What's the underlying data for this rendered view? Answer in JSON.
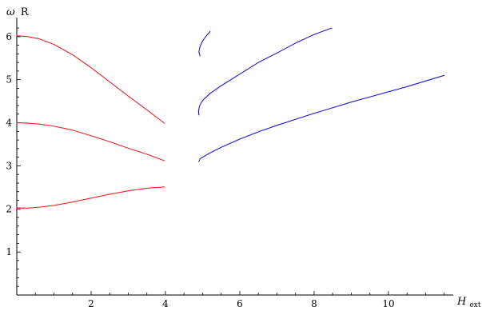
{
  "chart_data": {
    "type": "line",
    "title": "",
    "xlabel": "H",
    "xlabel_sub": "ext",
    "ylabel_symbol": "ω",
    "ylabel_suffix": "R",
    "xlim": [
      0,
      11.7
    ],
    "ylim": [
      0,
      6.35
    ],
    "xticks_major": [
      2,
      4,
      6,
      8,
      10
    ],
    "yticks_major": [
      1,
      2,
      3,
      4,
      5,
      6
    ],
    "grid": false,
    "legend": "none",
    "colors": {
      "red": "#e8262a",
      "blue": "#1a1ad6"
    },
    "series": [
      {
        "color": "red",
        "x": [
          0,
          0.3,
          0.6,
          1.0,
          1.5,
          2.0,
          2.5,
          3.0,
          3.5,
          3.97
        ],
        "y": [
          2.02,
          2.02,
          2.04,
          2.08,
          2.16,
          2.25,
          2.34,
          2.42,
          2.48,
          2.51
        ]
      },
      {
        "color": "red",
        "x": [
          0,
          0.3,
          0.6,
          1.0,
          1.5,
          2.0,
          2.5,
          3.0,
          3.5,
          3.97
        ],
        "y": [
          4.0,
          3.99,
          3.97,
          3.92,
          3.83,
          3.7,
          3.56,
          3.41,
          3.27,
          3.12
        ]
      },
      {
        "color": "red",
        "x": [
          0,
          0.3,
          0.6,
          1.0,
          1.5,
          2.0,
          2.5,
          3.0,
          3.5,
          3.97
        ],
        "y": [
          6.02,
          6.0,
          5.95,
          5.82,
          5.58,
          5.28,
          4.95,
          4.62,
          4.3,
          3.99
        ]
      },
      {
        "color": "blue",
        "x": [
          4.9,
          4.93,
          5.0,
          5.2,
          5.5,
          6.0,
          6.5,
          7.0,
          7.5,
          8.0,
          8.5,
          9.0,
          9.5,
          10.0,
          10.5,
          11.0,
          11.5
        ],
        "y": [
          3.1,
          3.16,
          3.2,
          3.3,
          3.43,
          3.62,
          3.79,
          3.94,
          4.08,
          4.22,
          4.35,
          4.48,
          4.6,
          4.72,
          4.84,
          4.97,
          5.1
        ]
      },
      {
        "color": "blue",
        "x": [
          4.9,
          4.89,
          4.92,
          5.0,
          5.2,
          5.5,
          6.0,
          6.5,
          7.0,
          7.5,
          8.0,
          8.47
        ],
        "y": [
          4.18,
          4.28,
          4.4,
          4.52,
          4.68,
          4.86,
          5.13,
          5.4,
          5.62,
          5.85,
          6.05,
          6.2
        ]
      },
      {
        "color": "blue",
        "x": [
          4.93,
          4.9,
          4.93,
          5.0,
          5.1,
          5.2
        ],
        "y": [
          5.55,
          5.65,
          5.77,
          5.9,
          6.02,
          6.12
        ]
      }
    ]
  }
}
